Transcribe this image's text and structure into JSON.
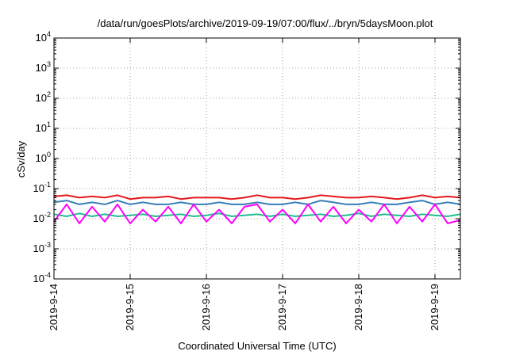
{
  "chart_data": {
    "type": "line",
    "title": "/data/run/goesPlots/archive/2019-09-19/07:00/flux/../bryn/5daysMoon.plot",
    "xlabel": "Coordinated Universal Time (UTC)",
    "ylabel": "cSv/day",
    "yscale": "log",
    "ylim": [
      0.0001,
      10000
    ],
    "y_ticks": [
      {
        "base": "10",
        "exp": "-4",
        "value": 0.0001
      },
      {
        "base": "10",
        "exp": "-3",
        "value": 0.001
      },
      {
        "base": "10",
        "exp": "-2",
        "value": 0.01
      },
      {
        "base": "10",
        "exp": "-1",
        "value": 0.1
      },
      {
        "base": "10",
        "exp": "0",
        "value": 1
      },
      {
        "base": "10",
        "exp": "1",
        "value": 10
      },
      {
        "base": "10",
        "exp": "2",
        "value": 100
      },
      {
        "base": "10",
        "exp": "3",
        "value": 1000
      },
      {
        "base": "10",
        "exp": "4",
        "value": 10000
      }
    ],
    "xlim": [
      "2019-09-14",
      "2019-09-19T08:00"
    ],
    "x_ticks": [
      "2019-9-14",
      "2019-9-15",
      "2019-9-16",
      "2019-9-17",
      "2019-9-18",
      "2019-9-19"
    ],
    "x": [
      "2019-09-14T00:00",
      "2019-09-14T04:00",
      "2019-09-14T08:00",
      "2019-09-14T12:00",
      "2019-09-14T16:00",
      "2019-09-14T20:00",
      "2019-09-15T00:00",
      "2019-09-15T04:00",
      "2019-09-15T08:00",
      "2019-09-15T12:00",
      "2019-09-15T16:00",
      "2019-09-15T20:00",
      "2019-09-16T00:00",
      "2019-09-16T04:00",
      "2019-09-16T08:00",
      "2019-09-16T12:00",
      "2019-09-16T16:00",
      "2019-09-16T20:00",
      "2019-09-17T00:00",
      "2019-09-17T04:00",
      "2019-09-17T08:00",
      "2019-09-17T12:00",
      "2019-09-17T16:00",
      "2019-09-17T20:00",
      "2019-09-18T00:00",
      "2019-09-18T04:00",
      "2019-09-18T08:00",
      "2019-09-18T12:00",
      "2019-09-18T16:00",
      "2019-09-18T20:00",
      "2019-09-19T00:00",
      "2019-09-19T04:00",
      "2019-09-19T08:00"
    ],
    "series": [
      {
        "color": "#e41a1c",
        "values": [
          0.055,
          0.06,
          0.05,
          0.055,
          0.05,
          0.06,
          0.045,
          0.05,
          0.05,
          0.055,
          0.045,
          0.05,
          0.05,
          0.05,
          0.045,
          0.05,
          0.06,
          0.05,
          0.05,
          0.045,
          0.05,
          0.06,
          0.055,
          0.05,
          0.05,
          0.055,
          0.05,
          0.045,
          0.05,
          0.06,
          0.05,
          0.055,
          0.05
        ]
      },
      {
        "color": "#377eb8",
        "values": [
          0.035,
          0.04,
          0.03,
          0.035,
          0.03,
          0.04,
          0.03,
          0.035,
          0.03,
          0.03,
          0.035,
          0.03,
          0.03,
          0.035,
          0.03,
          0.03,
          0.035,
          0.03,
          0.03,
          0.035,
          0.03,
          0.04,
          0.035,
          0.03,
          0.03,
          0.035,
          0.03,
          0.03,
          0.035,
          0.04,
          0.03,
          0.035,
          0.03
        ]
      },
      {
        "color": "#1fbf8f",
        "values": [
          0.014,
          0.012,
          0.015,
          0.012,
          0.014,
          0.012,
          0.013,
          0.014,
          0.012,
          0.013,
          0.014,
          0.012,
          0.013,
          0.015,
          0.012,
          0.013,
          0.014,
          0.012,
          0.014,
          0.012,
          0.013,
          0.014,
          0.012,
          0.013,
          0.015,
          0.012,
          0.014,
          0.013,
          0.012,
          0.014,
          0.013,
          0.012,
          0.014
        ]
      },
      {
        "color": "#ff00ff",
        "values": [
          0.008,
          0.03,
          0.007,
          0.025,
          0.008,
          0.03,
          0.007,
          0.02,
          0.008,
          0.025,
          0.007,
          0.03,
          0.008,
          0.02,
          0.007,
          0.025,
          0.03,
          0.008,
          0.02,
          0.007,
          0.03,
          0.008,
          0.025,
          0.007,
          0.02,
          0.008,
          0.03,
          0.007,
          0.025,
          0.008,
          0.03,
          0.007,
          0.009
        ]
      }
    ],
    "grid": true
  }
}
